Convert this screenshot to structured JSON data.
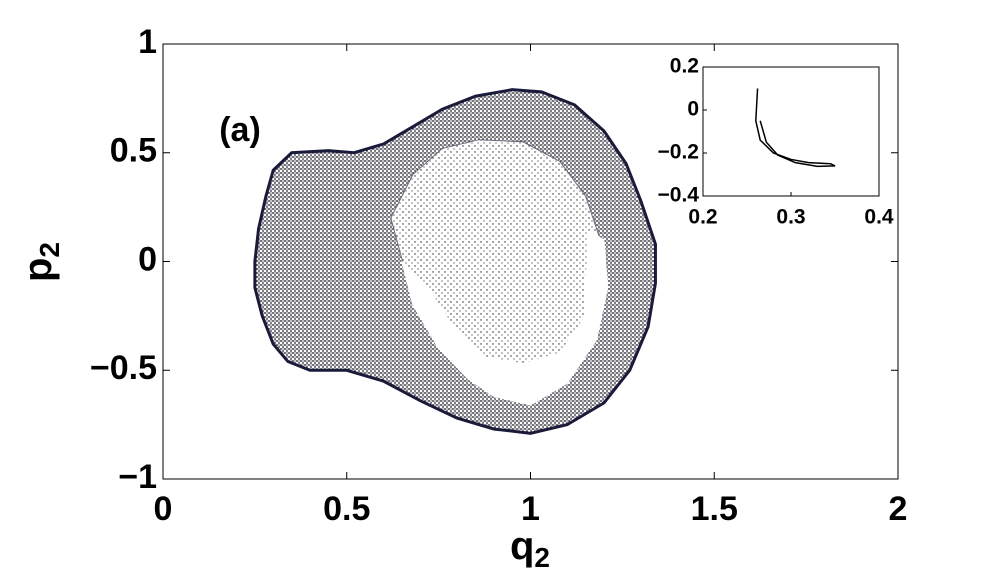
{
  "chart_data": {
    "type": "scatter",
    "annotation": "(a)",
    "xlabel": "q",
    "xlabel_sub": "2",
    "ylabel": "p",
    "ylabel_sub": "2",
    "xlim": [
      0,
      2
    ],
    "ylim": [
      -1,
      1
    ],
    "xticks": [
      0,
      0.5,
      1,
      1.5,
      2
    ],
    "yticks": [
      {
        "value": -1,
        "label": "−1"
      },
      {
        "value": -0.5,
        "label": "−0.5"
      },
      0,
      0.5,
      1
    ],
    "series": [
      {
        "color": "#1a1a3a",
        "x": [
          0.25,
          0.26,
          0.28,
          0.3,
          0.35,
          0.45,
          0.52,
          0.6,
          0.68,
          0.76,
          0.85,
          0.95,
          1.03,
          1.12,
          1.2,
          1.26,
          1.3,
          1.34,
          1.34,
          1.32,
          1.27,
          1.2,
          1.1,
          1.0,
          0.9,
          0.8,
          0.7,
          0.6,
          0.5,
          0.4,
          0.34,
          0.3,
          0.27,
          0.25
        ],
        "y": [
          0.0,
          0.15,
          0.3,
          0.42,
          0.5,
          0.51,
          0.5,
          0.54,
          0.62,
          0.7,
          0.76,
          0.79,
          0.78,
          0.72,
          0.6,
          0.45,
          0.28,
          0.08,
          -0.1,
          -0.3,
          -0.5,
          -0.65,
          -0.75,
          -0.79,
          -0.77,
          -0.72,
          -0.64,
          -0.55,
          -0.5,
          -0.5,
          -0.46,
          -0.38,
          -0.25,
          -0.12
        ]
      },
      {
        "color": "#6a6a7a",
        "x": [
          0.62,
          0.68,
          0.76,
          0.86,
          0.98,
          1.08,
          1.15,
          1.19,
          1.2,
          1.17,
          1.1,
          0.98,
          0.86,
          0.74,
          0.66
        ],
        "y": [
          0.2,
          0.4,
          0.52,
          0.56,
          0.55,
          0.46,
          0.3,
          0.1,
          -0.15,
          -0.35,
          -0.45,
          -0.5,
          -0.45,
          -0.3,
          -0.05
        ]
      },
      {
        "color": "#ffffff",
        "x": [
          0.65,
          0.68,
          0.75,
          0.83,
          0.9,
          1.0,
          1.1,
          1.18,
          1.21,
          1.2,
          1.16,
          1.15,
          1.15,
          1.08,
          0.98,
          0.88,
          0.79,
          0.72
        ],
        "y": [
          0.0,
          -0.2,
          -0.4,
          -0.54,
          -0.62,
          -0.66,
          -0.56,
          -0.36,
          -0.12,
          0.1,
          0.14,
          -0.1,
          -0.25,
          -0.42,
          -0.47,
          -0.44,
          -0.3,
          -0.12
        ]
      }
    ],
    "inset": {
      "type": "line",
      "xlim": [
        0.2,
        0.4
      ],
      "ylim": [
        -0.4,
        0.2
      ],
      "xticks": [
        0.2,
        0.3,
        0.4
      ],
      "yticks": [
        {
          "value": -0.4,
          "label": "−0.4"
        },
        {
          "value": -0.2,
          "label": "−0.2"
        },
        0,
        0.2
      ],
      "color": "#000000",
      "x": [
        0.262,
        0.26,
        0.265,
        0.28,
        0.3,
        0.32,
        0.345,
        0.35,
        0.33,
        0.305,
        0.285,
        0.272,
        0.265
      ],
      "y": [
        0.1,
        -0.05,
        -0.14,
        -0.2,
        -0.23,
        -0.245,
        -0.25,
        -0.26,
        -0.262,
        -0.245,
        -0.21,
        -0.15,
        -0.05
      ]
    }
  }
}
